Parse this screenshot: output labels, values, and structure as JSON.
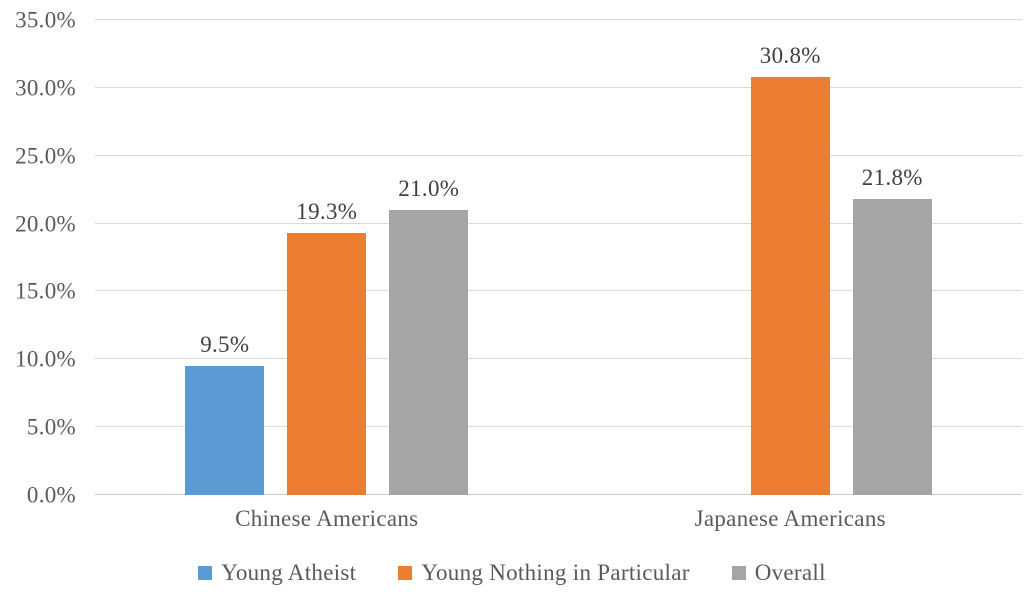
{
  "chart_data": {
    "type": "bar",
    "title": "",
    "categories": [
      "Chinese Americans",
      "Japanese Americans"
    ],
    "series": [
      {
        "name": "Young Atheist",
        "color": "#5b9bd5",
        "values": [
          9.5,
          null
        ],
        "labels": [
          "9.5%",
          null
        ]
      },
      {
        "name": "Young Nothing in Particular",
        "color": "#ed7d31",
        "values": [
          19.3,
          30.8
        ],
        "labels": [
          "19.3%",
          "30.8%"
        ]
      },
      {
        "name": "Overall",
        "color": "#a5a5a5",
        "values": [
          21.0,
          21.8
        ],
        "labels": [
          "21.0%",
          "21.8%"
        ]
      }
    ],
    "y_axis": {
      "min": 0,
      "max": 35,
      "step": 5,
      "tick_labels": [
        "0.0%",
        "5.0%",
        "10.0%",
        "15.0%",
        "20.0%",
        "25.0%",
        "30.0%",
        "35.0%"
      ]
    },
    "xlabel": "",
    "ylabel": "",
    "grid": true,
    "legend_position": "bottom",
    "colors": {
      "background": "#ffffff",
      "gridline": "#d9d9d9",
      "axis_line": "#c9c9c9",
      "tick_text": "#595959",
      "data_label_text": "#404040"
    }
  }
}
